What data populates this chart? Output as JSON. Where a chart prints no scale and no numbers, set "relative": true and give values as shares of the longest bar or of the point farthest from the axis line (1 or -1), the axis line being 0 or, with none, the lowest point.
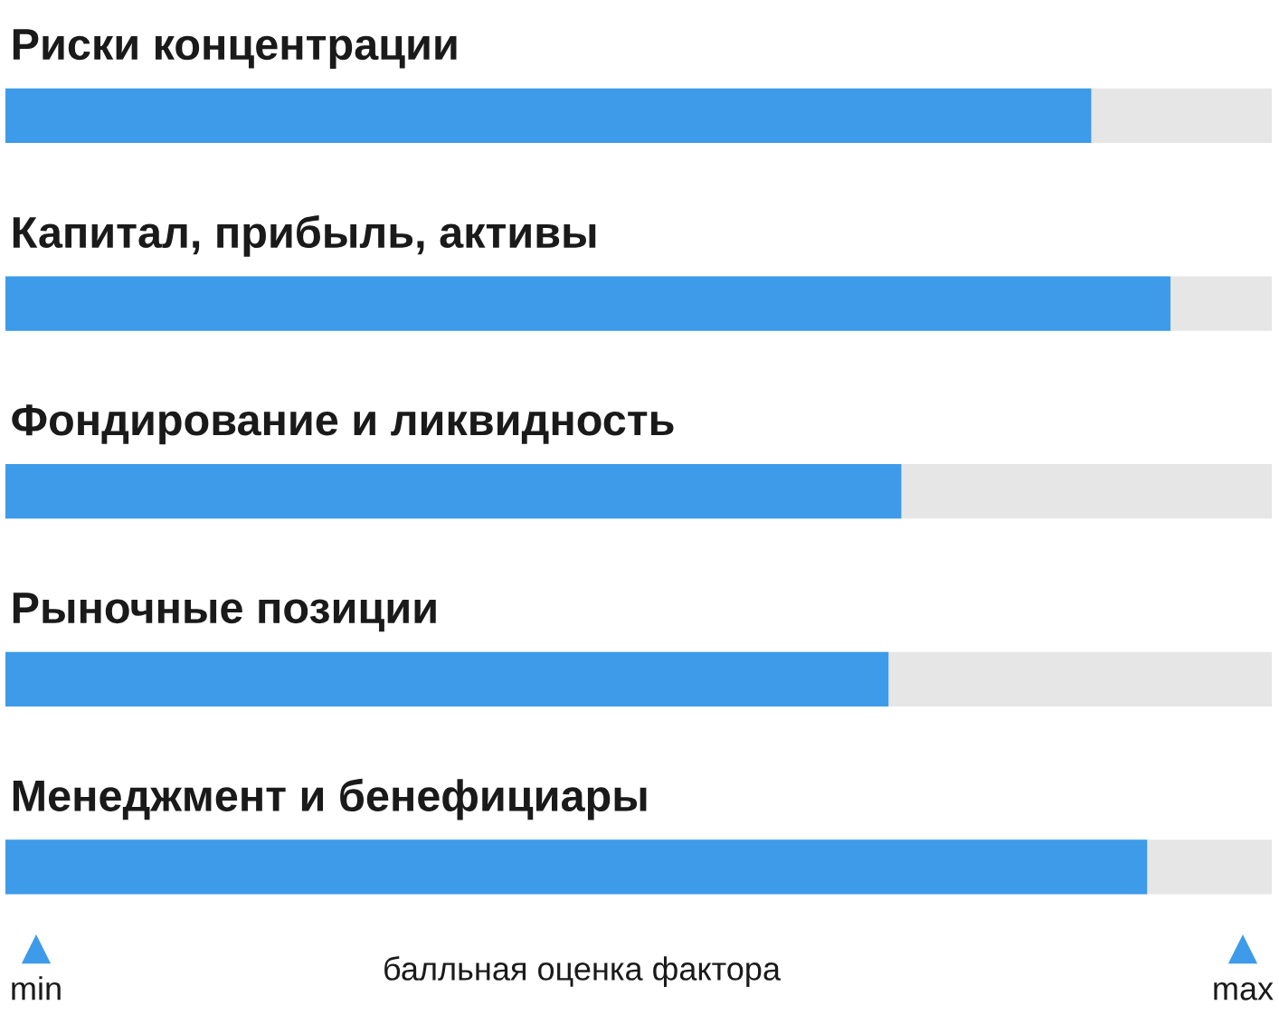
{
  "chart_data": {
    "type": "bar",
    "orientation": "horizontal",
    "relative": true,
    "categories": [
      "Риски концентрации",
      "Капитал, прибыль, активы",
      "Фондирование и ликвидность",
      "Рыночные позиции",
      "Менеджмент и бенефициары"
    ],
    "values": [
      0.932,
      1,
      0.769,
      0.758,
      0.98
    ],
    "color": "#3d9be9",
    "xlabel": "балльная оценка фактора",
    "annotations": [
      "min",
      "max"
    ]
  }
}
